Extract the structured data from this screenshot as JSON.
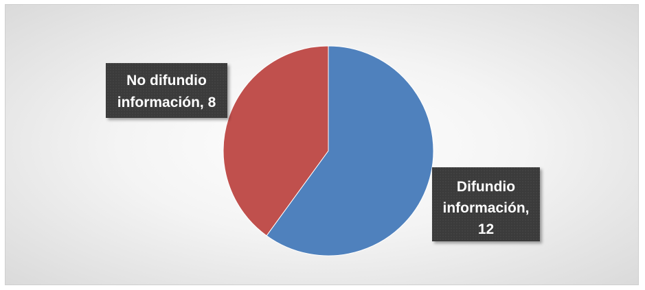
{
  "chart_data": {
    "type": "pie",
    "slices": [
      {
        "category": "Difundio información",
        "value": 12,
        "color": "#4F81BD",
        "label_lines": [
          "Difundio",
          "información,",
          "12"
        ]
      },
      {
        "category": "No difundio información",
        "value": 8,
        "color": "#C0504D",
        "label_lines": [
          "No difundio",
          "información, 8"
        ]
      }
    ]
  },
  "colors": {
    "label_bg": "#3a3a3a",
    "label_text": "#ffffff"
  }
}
